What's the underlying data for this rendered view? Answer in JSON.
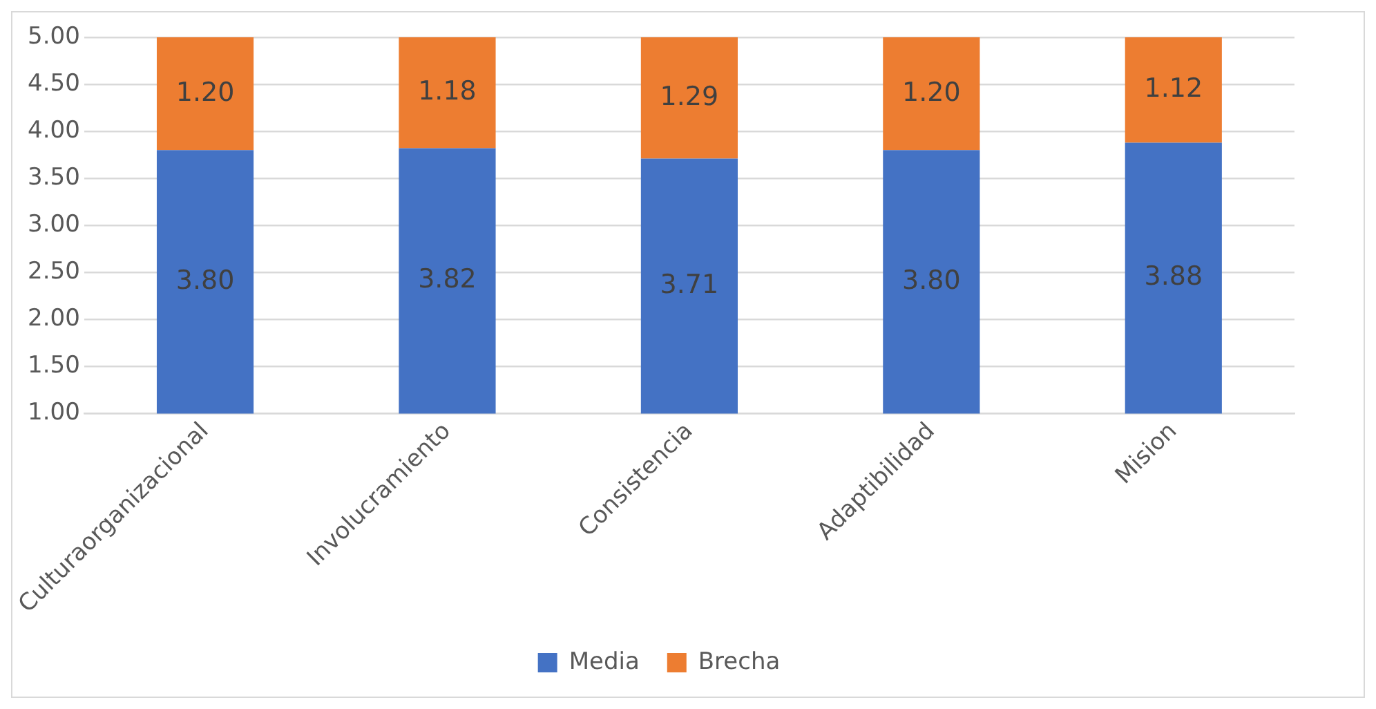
{
  "chart_data": {
    "type": "bar",
    "stacked": true,
    "categories": [
      "Culturaorganizacional",
      "Involucramiento",
      "Consistencia",
      "Adaptibilidad",
      "Mision"
    ],
    "series": [
      {
        "name": "Media",
        "color": "#4472c4",
        "values": [
          3.8,
          3.82,
          3.71,
          3.8,
          3.88
        ],
        "value_labels": [
          "3.80",
          "3.82",
          "3.71",
          "3.80",
          "3.88"
        ]
      },
      {
        "name": "Brecha",
        "color": "#ed7d31",
        "values": [
          1.2,
          1.18,
          1.29,
          1.2,
          1.12
        ],
        "value_labels": [
          "1.20",
          "1.18",
          "1.29",
          "1.20",
          "1.12"
        ]
      }
    ],
    "ylim": [
      1,
      5
    ],
    "yticks": [
      {
        "value": 1,
        "label": "1.00"
      },
      {
        "value": 1.5,
        "label": "1.50"
      },
      {
        "value": 2,
        "label": "2.00"
      },
      {
        "value": 2.5,
        "label": "2.50"
      },
      {
        "value": 3,
        "label": "3.00"
      },
      {
        "value": 3.5,
        "label": "3.50"
      },
      {
        "value": 4,
        "label": "4.00"
      },
      {
        "value": 4.5,
        "label": "4.50"
      },
      {
        "value": 5,
        "label": "5.00"
      }
    ],
    "grid": "y",
    "legend": "bottom"
  }
}
